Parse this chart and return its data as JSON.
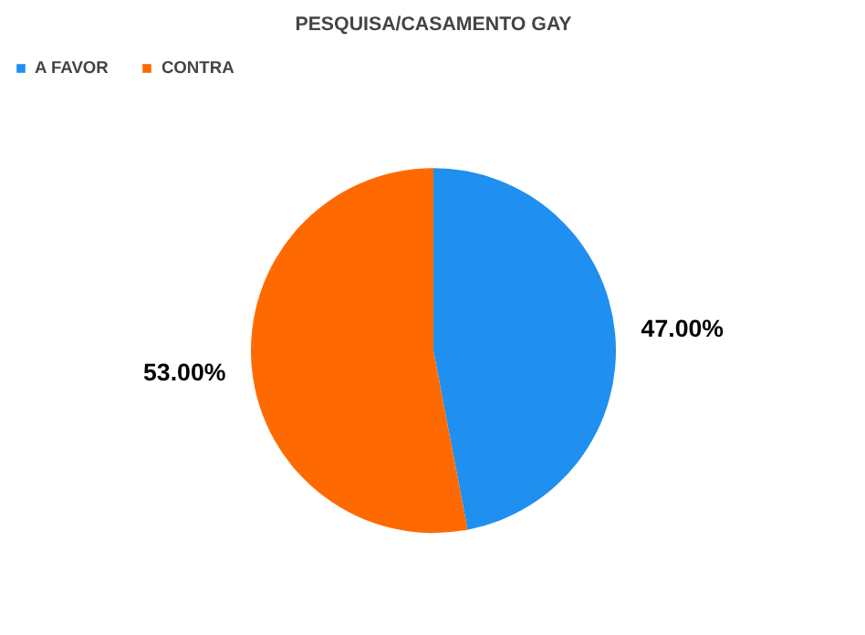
{
  "chart_data": {
    "type": "pie",
    "title": "PESQUISA/CASAMENTO GAY",
    "categories": [
      "A FAVOR",
      "CONTRA"
    ],
    "values": [
      47,
      53
    ],
    "colors": [
      "#1f8ff0",
      "#ff6a00"
    ],
    "value_labels": [
      "47.00%",
      "53.00%"
    ],
    "legend": "top left"
  }
}
